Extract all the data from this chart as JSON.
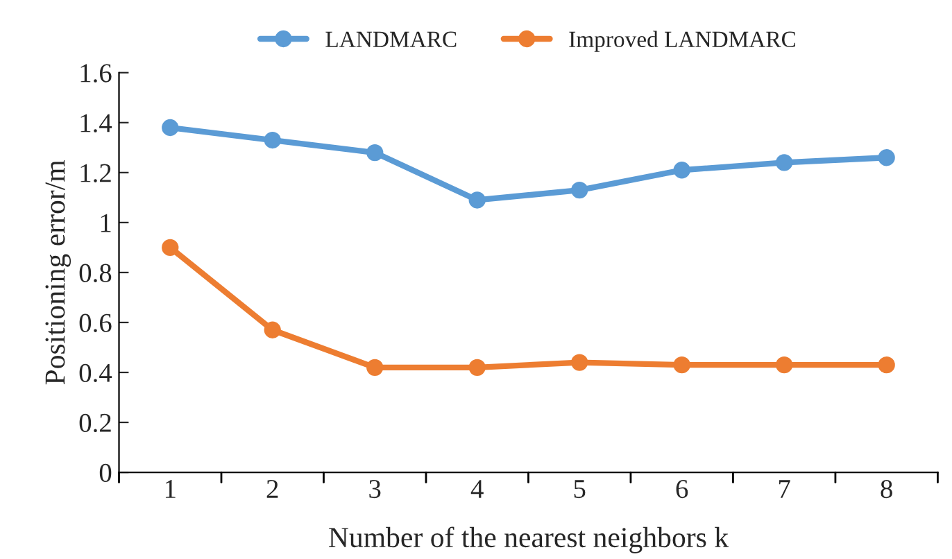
{
  "chart_data": {
    "type": "line",
    "xlabel": "Number of the nearest neighbors k",
    "ylabel": "Positioning error/m",
    "categories": [
      "1",
      "2",
      "3",
      "4",
      "5",
      "6",
      "7",
      "8"
    ],
    "series": [
      {
        "name": "LANDMARC",
        "color": "#5b9bd5",
        "values": [
          1.38,
          1.33,
          1.28,
          1.09,
          1.13,
          1.21,
          1.24,
          1.26
        ]
      },
      {
        "name": "Improved LANDMARC",
        "color": "#ed7d31",
        "values": [
          0.9,
          0.57,
          0.42,
          0.42,
          0.44,
          0.43,
          0.43,
          0.43
        ]
      }
    ],
    "ylim": [
      0,
      1.6
    ],
    "yticks": [
      0,
      0.2,
      0.4,
      0.6,
      0.8,
      1,
      1.2,
      1.4,
      1.6
    ],
    "grid": false,
    "legend": "top",
    "marker": "circle",
    "line_style": "solid"
  }
}
